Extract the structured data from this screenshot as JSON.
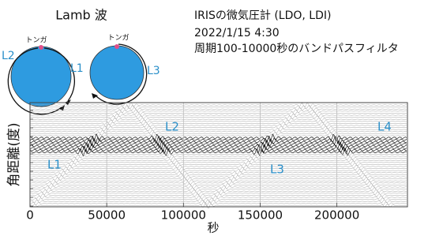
{
  "chart_data": {
    "type": "record-section",
    "title": "Lamb 波",
    "info": [
      "IRISの微気圧計 (LDO, LDI)",
      "2022/1/15 4:30",
      "周期100-10000秒のバンドパスフィルタ"
    ],
    "inset": {
      "source": [
        "トンガ",
        "トンガ"
      ],
      "paths": [
        "L2",
        "L1",
        "L3"
      ]
    },
    "xlabel": "秒",
    "ylabel": "角距離(度)",
    "xlim": [
      0,
      246000
    ],
    "xticks": [
      0,
      50000,
      100000,
      150000,
      200000
    ],
    "grid": true,
    "annotations": [
      "L1",
      "L2",
      "L3",
      "L4"
    ]
  }
}
